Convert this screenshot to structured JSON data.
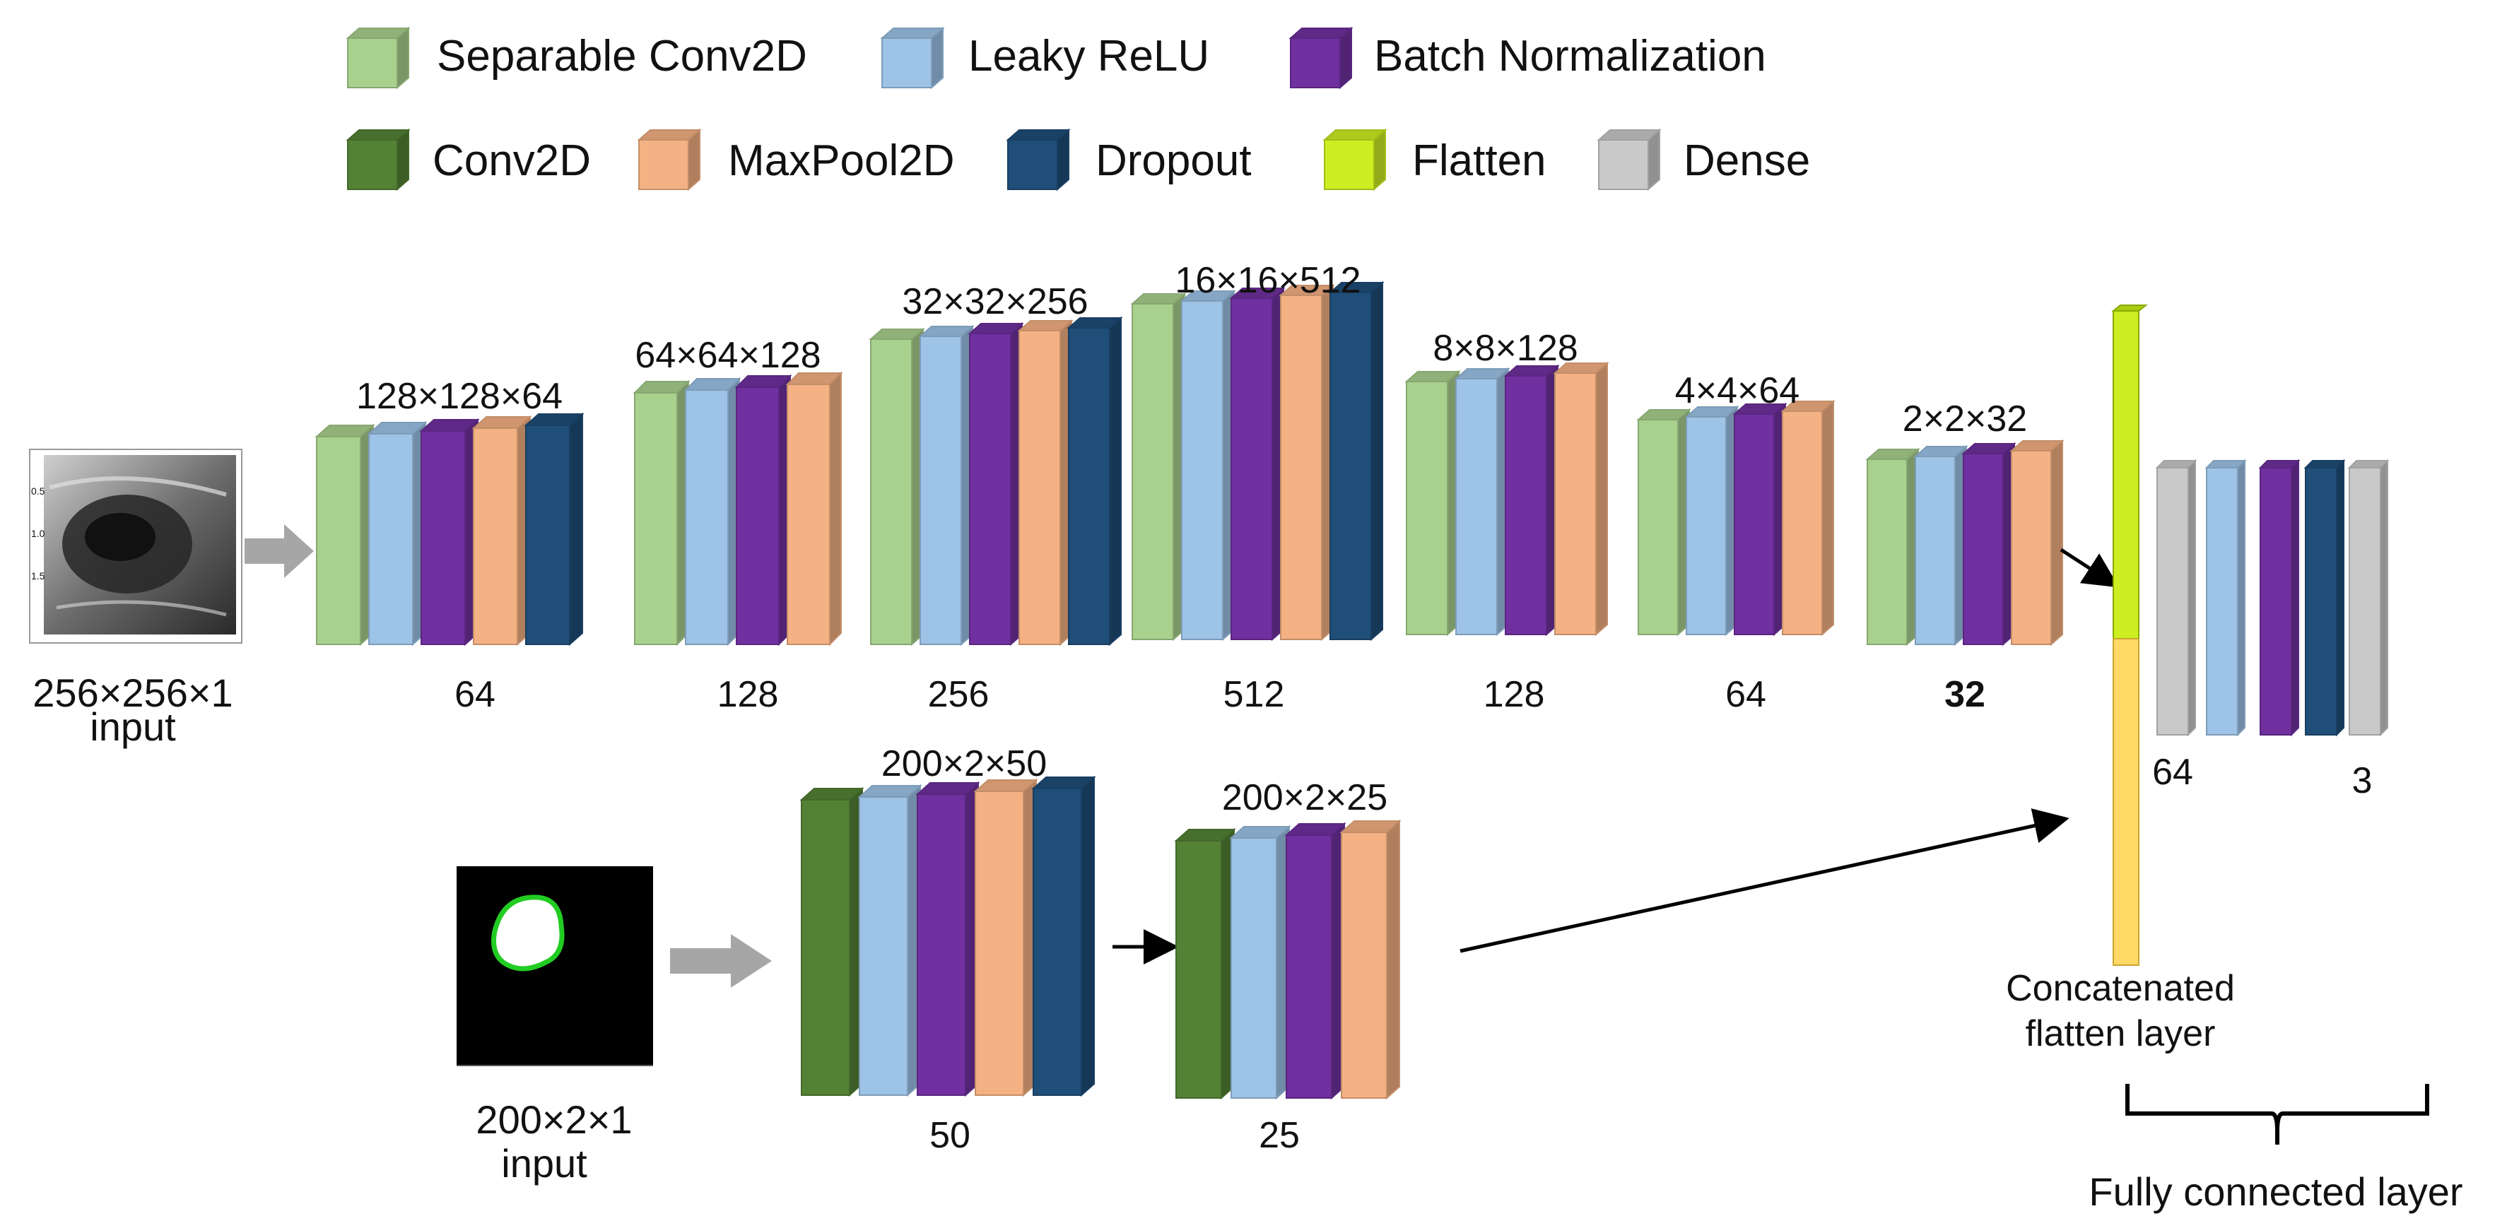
{
  "legend": [
    {
      "key": "sepconv",
      "label": "Separable Conv2D",
      "color": "#a9d18e"
    },
    {
      "key": "leaky",
      "label": "Leaky ReLU",
      "color": "#9dc3e6"
    },
    {
      "key": "bn",
      "label": "Batch Normalization",
      "color": "#7030a0"
    },
    {
      "key": "conv",
      "label": "Conv2D",
      "color": "#548235"
    },
    {
      "key": "maxpool",
      "label": "MaxPool2D",
      "color": "#f4b183"
    },
    {
      "key": "dropout",
      "label": "Dropout",
      "color": "#1f4e79"
    },
    {
      "key": "flatten",
      "label": "Flatten",
      "color": "#ccee22"
    },
    {
      "key": "dense",
      "label": "Dense",
      "color": "#c9c9c9"
    }
  ],
  "concat_color": "#ffd966",
  "image_branch": {
    "input_label_1": "256×256×1",
    "input_label_2": "input",
    "blocks": [
      {
        "shape": "128×128×64",
        "filters": "64"
      },
      {
        "shape": "64×64×128",
        "filters": "128"
      },
      {
        "shape": "32×32×256",
        "filters": "256"
      },
      {
        "shape": "16×16×512",
        "filters": "512"
      },
      {
        "shape": "8×8×128",
        "filters": "128"
      },
      {
        "shape": "4×4×64",
        "filters": "64"
      },
      {
        "shape": "2×2×32",
        "filters": "32"
      }
    ]
  },
  "mask_branch": {
    "input_label_1": "200×2×1",
    "input_label_2": "input",
    "blocks": [
      {
        "shape": "200×2×50",
        "filters": "50"
      },
      {
        "shape": "200×2×25",
        "filters": "25"
      }
    ]
  },
  "concat": {
    "label_1": "Concatenated",
    "label_2": "flatten layer"
  },
  "fully_connected": {
    "label": "Fully connected layer",
    "units_first": "64",
    "units_last": "3"
  }
}
